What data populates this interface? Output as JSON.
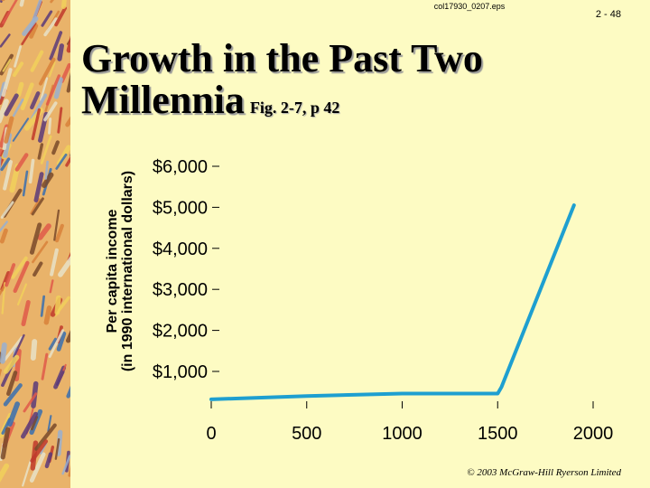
{
  "header": {
    "filename": "col17930_0207.eps",
    "slide_number": "2 - 48"
  },
  "title": {
    "main_line1": "Growth in the Past Two",
    "main_line2": "Millennia",
    "figure_ref": "Fig. 2-7, p 42"
  },
  "footer": {
    "copyright": "© 2003 McGraw-Hill Ryerson Limited"
  },
  "chart_data": {
    "type": "line",
    "title": "Growth in the Past Two Millennia",
    "xlabel": "",
    "ylabel_line1": "Per capita income",
    "ylabel_line2": "(in 1990 international dollars)",
    "xlim": [
      0,
      2000
    ],
    "ylim": [
      0,
      6000
    ],
    "x_ticks": [
      0,
      500,
      1000,
      1500,
      2000
    ],
    "x_tick_labels": [
      "0",
      "500",
      "1000",
      "1500",
      "2000"
    ],
    "y_ticks": [
      1000,
      2000,
      3000,
      4000,
      5000,
      6000
    ],
    "y_tick_labels": [
      "$1,000",
      "$2,000",
      "$3,000",
      "$4,000",
      "$5,000",
      "$6,000"
    ],
    "grid": false,
    "line_color": "#1e9fd0",
    "series": [
      {
        "x": [
          0,
          500,
          1000,
          1500,
          1520,
          1900
        ],
        "y": [
          320,
          400,
          460,
          460,
          620,
          5050
        ]
      }
    ]
  }
}
